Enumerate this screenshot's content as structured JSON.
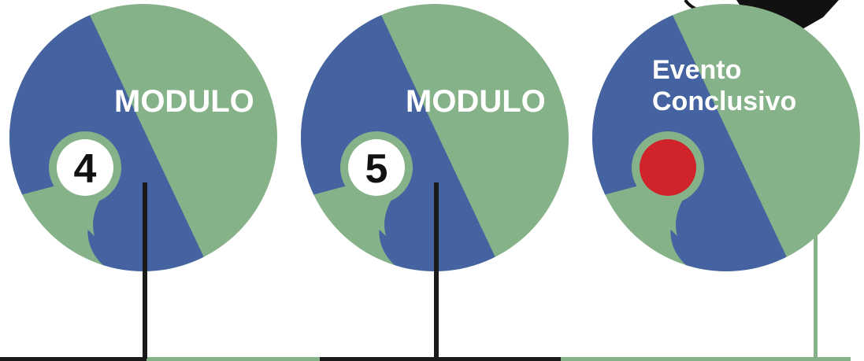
{
  "modules": [
    {
      "title": "MODULO",
      "number": "4"
    },
    {
      "title": "MODULO",
      "number": "5"
    },
    {
      "title_lines": [
        "Evento",
        "Conclusivo"
      ]
    }
  ]
}
